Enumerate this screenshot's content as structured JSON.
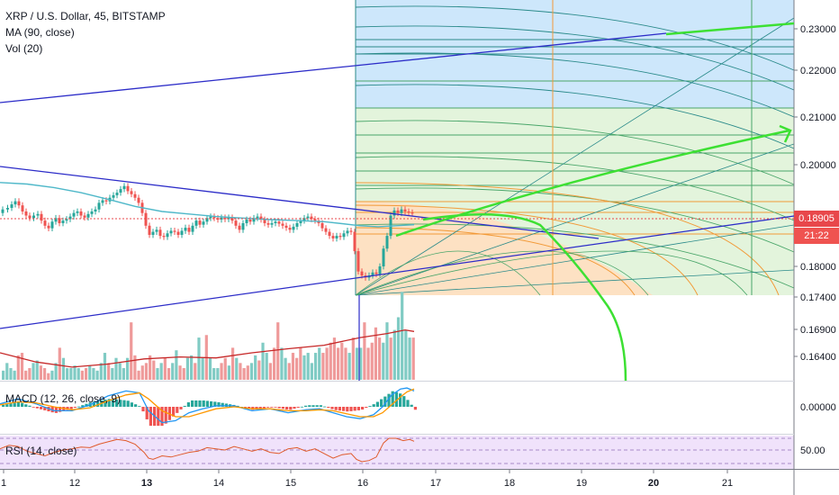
{
  "header": {
    "symbol_line": "XRP / U.S. Dollar, 45, BITSTAMP",
    "ma_label": "MA (90, close)",
    "vol_label": "Vol (20)",
    "macd_label": "MACD (12, 26, close, 9)",
    "rsi_label": "RSI (14, close)"
  },
  "price_axis": {
    "ticks": [
      "0.23000",
      "0.22000",
      "0.21000",
      "0.20000",
      "0.18000",
      "0.17400",
      "0.16900",
      "0.16400"
    ],
    "current_price": "0.18905",
    "countdown": "21:22"
  },
  "macd_axis": {
    "ticks": [
      "0.00000"
    ]
  },
  "rsi_axis": {
    "ticks": [
      "50.00"
    ]
  },
  "time_axis": {
    "ticks": [
      "1",
      "12",
      "13",
      "14",
      "15",
      "16",
      "17",
      "18",
      "19",
      "20",
      "21"
    ],
    "bold": [
      "13",
      "20"
    ]
  },
  "colors": {
    "up": "#26a69a",
    "down": "#ef5350",
    "ma": "#4fb8c9",
    "trendline": "#2c2cc8",
    "arrow": "#3de033",
    "price_tag": "#e8474b",
    "countdown_tag": "#ef5350",
    "fib_blue": "#cde7fb",
    "fib_green": "#e3f4dc",
    "fib_orange": "#fde1c3",
    "rsi_band": "#f0e2fb"
  },
  "chart_data": {
    "type": "candlestick",
    "instrument": "XRP / U.S. Dollar",
    "timeframe": "45",
    "exchange": "BITSTAMP",
    "price_range": [
      0.162,
      0.234
    ],
    "last_price": 0.18905,
    "ma_period": 90,
    "vol_period": 20,
    "macd_params": [
      12,
      26,
      9
    ],
    "rsi_period": 14,
    "rsi_level": 50.0,
    "price_path": [
      [
        0,
        0.1905
      ],
      [
        6,
        0.1912
      ],
      [
        11,
        0.1915
      ],
      [
        15,
        0.1922
      ],
      [
        19,
        0.1928
      ],
      [
        23,
        0.192
      ],
      [
        27,
        0.1908
      ],
      [
        31,
        0.19
      ],
      [
        35,
        0.1895
      ],
      [
        40,
        0.19
      ],
      [
        44,
        0.1903
      ],
      [
        48,
        0.189
      ],
      [
        52,
        0.188
      ],
      [
        56,
        0.1875
      ],
      [
        60,
        0.1888
      ],
      [
        64,
        0.1895
      ],
      [
        68,
        0.1885
      ],
      [
        72,
        0.189
      ],
      [
        76,
        0.1893
      ],
      [
        80,
        0.1898
      ],
      [
        84,
        0.1905
      ],
      [
        88,
        0.1908
      ],
      [
        92,
        0.19
      ],
      [
        96,
        0.1896
      ],
      [
        100,
        0.1903
      ],
      [
        104,
        0.1908
      ],
      [
        108,
        0.1912
      ],
      [
        112,
        0.1925
      ],
      [
        116,
        0.193
      ],
      [
        120,
        0.1928
      ],
      [
        124,
        0.1935
      ],
      [
        128,
        0.194
      ],
      [
        132,
        0.1945
      ],
      [
        136,
        0.1952
      ],
      [
        140,
        0.1958
      ],
      [
        144,
        0.1948
      ],
      [
        148,
        0.1942
      ],
      [
        152,
        0.1935
      ],
      [
        156,
        0.1925
      ],
      [
        160,
        0.1905
      ],
      [
        164,
        0.188
      ],
      [
        168,
        0.1862
      ],
      [
        172,
        0.1868
      ],
      [
        176,
        0.1872
      ],
      [
        180,
        0.186
      ],
      [
        184,
        0.1858
      ],
      [
        188,
        0.1865
      ],
      [
        192,
        0.187
      ],
      [
        196,
        0.1868
      ],
      [
        200,
        0.1862
      ],
      [
        204,
        0.187
      ],
      [
        208,
        0.1876
      ],
      [
        212,
        0.1868
      ],
      [
        216,
        0.188
      ],
      [
        220,
        0.189
      ],
      [
        224,
        0.1882
      ],
      [
        228,
        0.1888
      ],
      [
        232,
        0.1895
      ],
      [
        236,
        0.1898
      ],
      [
        240,
        0.1895
      ],
      [
        244,
        0.1892
      ],
      [
        248,
        0.1896
      ],
      [
        252,
        0.1893
      ],
      [
        256,
        0.1896
      ],
      [
        260,
        0.189
      ],
      [
        264,
        0.188
      ],
      [
        268,
        0.1872
      ],
      [
        272,
        0.1885
      ],
      [
        276,
        0.1892
      ],
      [
        280,
        0.1888
      ],
      [
        284,
        0.1895
      ],
      [
        288,
        0.1898
      ],
      [
        292,
        0.1892
      ],
      [
        296,
        0.1885
      ],
      [
        300,
        0.1882
      ],
      [
        304,
        0.1885
      ],
      [
        308,
        0.1888
      ],
      [
        312,
        0.1884
      ],
      [
        316,
        0.188
      ],
      [
        320,
        0.1876
      ],
      [
        324,
        0.1872
      ],
      [
        328,
        0.1878
      ],
      [
        332,
        0.1885
      ],
      [
        336,
        0.189
      ],
      [
        340,
        0.1895
      ],
      [
        344,
        0.1898
      ],
      [
        348,
        0.1893
      ],
      [
        352,
        0.189
      ],
      [
        356,
        0.1885
      ],
      [
        360,
        0.1875
      ],
      [
        364,
        0.1868
      ],
      [
        368,
        0.186
      ],
      [
        372,
        0.1855
      ],
      [
        376,
        0.186
      ],
      [
        380,
        0.1858
      ],
      [
        384,
        0.1865
      ],
      [
        388,
        0.187
      ],
      [
        392,
        0.1868
      ],
      [
        396,
        0.183
      ],
      [
        400,
        0.179
      ],
      [
        404,
        0.1782
      ],
      [
        408,
        0.1778
      ],
      [
        412,
        0.1782
      ],
      [
        416,
        0.1788
      ],
      [
        420,
        0.1785
      ],
      [
        424,
        0.18
      ],
      [
        428,
        0.1835
      ],
      [
        432,
        0.186
      ],
      [
        436,
        0.19
      ],
      [
        440,
        0.191
      ],
      [
        444,
        0.1905
      ],
      [
        448,
        0.1912
      ],
      [
        452,
        0.1908
      ],
      [
        456,
        0.1906
      ],
      [
        460,
        0.1905
      ]
    ],
    "volume": [
      0.1595,
      0.161,
      0.16,
      0.1595,
      0.1625,
      0.163,
      0.1595,
      0.16,
      0.161,
      0.1615,
      0.1605,
      0.16,
      0.159,
      0.1595,
      0.161,
      0.164,
      0.162,
      0.16,
      0.16,
      0.1605,
      0.16,
      0.1595,
      0.16,
      0.1605,
      0.16,
      0.1595,
      0.161,
      0.163,
      0.161,
      0.16,
      0.162,
      0.161,
      0.16,
      0.162,
      0.169,
      0.1625,
      0.1595,
      0.1605,
      0.161,
      0.1625,
      0.1615,
      0.16,
      0.161,
      0.162,
      0.16,
      0.161,
      0.1635,
      0.1605,
      0.16,
      0.162,
      0.1625,
      0.161,
      0.166,
      0.162,
      0.1665,
      0.162,
      0.16,
      0.16,
      0.161,
      0.162,
      0.1605,
      0.164,
      0.162,
      0.161,
      0.16,
      0.1605,
      0.161,
      0.1625,
      0.1615,
      0.165,
      0.163,
      0.161,
      0.164,
      0.169,
      0.164,
      0.162,
      0.161,
      0.163,
      0.162,
      0.164,
      0.1625,
      0.163,
      0.161,
      0.163,
      0.164,
      0.163,
      0.164,
      0.165,
      0.166,
      0.164,
      0.165,
      0.164,
      0.163,
      0.166,
      0.164,
      0.164,
      0.169,
      0.164,
      0.165,
      0.168,
      0.166,
      0.165,
      0.169,
      0.166,
      0.1675,
      0.17,
      0.175,
      0.1675,
      0.166,
      0.166
    ],
    "vol_ma": [
      [
        0,
        0.163
      ],
      [
        40,
        0.1612
      ],
      [
        80,
        0.1602
      ],
      [
        120,
        0.1608
      ],
      [
        160,
        0.1618
      ],
      [
        200,
        0.1622
      ],
      [
        240,
        0.162
      ],
      [
        280,
        0.163
      ],
      [
        320,
        0.1638
      ],
      [
        360,
        0.1645
      ],
      [
        400,
        0.166
      ],
      [
        430,
        0.1668
      ],
      [
        450,
        0.1675
      ],
      [
        460,
        0.1672
      ]
    ],
    "macd_line": [
      [
        0,
        0.003
      ],
      [
        20,
        0.008
      ],
      [
        40,
        0.003
      ],
      [
        60,
        -0.004
      ],
      [
        80,
        -0.004
      ],
      [
        100,
        0.002
      ],
      [
        120,
        0.011
      ],
      [
        140,
        0.016
      ],
      [
        155,
        0.014
      ],
      [
        165,
        -0.004
      ],
      [
        180,
        -0.016
      ],
      [
        195,
        -0.014
      ],
      [
        210,
        -0.006
      ],
      [
        225,
        -0.002
      ],
      [
        240,
        0.001
      ],
      [
        260,
        0.001
      ],
      [
        280,
        -0.004
      ],
      [
        300,
        -0.002
      ],
      [
        320,
        -0.006
      ],
      [
        340,
        -0.003
      ],
      [
        355,
        -0.002
      ],
      [
        370,
        -0.006
      ],
      [
        385,
        -0.01
      ],
      [
        400,
        -0.012
      ],
      [
        415,
        -0.008
      ],
      [
        425,
        0.0
      ],
      [
        435,
        0.012
      ],
      [
        445,
        0.018
      ],
      [
        452,
        0.019
      ],
      [
        460,
        0.016
      ]
    ],
    "macd_signal": [
      [
        0,
        0.002
      ],
      [
        20,
        0.005
      ],
      [
        40,
        0.004
      ],
      [
        60,
        0.0
      ],
      [
        80,
        -0.003
      ],
      [
        100,
        -0.001
      ],
      [
        120,
        0.006
      ],
      [
        140,
        0.012
      ],
      [
        155,
        0.014
      ],
      [
        165,
        0.008
      ],
      [
        180,
        -0.004
      ],
      [
        195,
        -0.01
      ],
      [
        210,
        -0.01
      ],
      [
        225,
        -0.006
      ],
      [
        240,
        -0.002
      ],
      [
        260,
        0.0
      ],
      [
        280,
        -0.002
      ],
      [
        300,
        -0.002
      ],
      [
        320,
        -0.004
      ],
      [
        340,
        -0.004
      ],
      [
        355,
        -0.003
      ],
      [
        370,
        -0.004
      ],
      [
        385,
        -0.007
      ],
      [
        400,
        -0.01
      ],
      [
        415,
        -0.01
      ],
      [
        425,
        -0.006
      ],
      [
        435,
        0.002
      ],
      [
        445,
        0.01
      ],
      [
        452,
        0.015
      ],
      [
        460,
        0.018
      ]
    ],
    "rsi": [
      [
        0,
        52
      ],
      [
        10,
        58
      ],
      [
        20,
        56
      ],
      [
        30,
        48
      ],
      [
        40,
        44
      ],
      [
        50,
        40
      ],
      [
        60,
        46
      ],
      [
        70,
        50
      ],
      [
        80,
        52
      ],
      [
        90,
        55
      ],
      [
        100,
        54
      ],
      [
        110,
        60
      ],
      [
        120,
        64
      ],
      [
        130,
        68
      ],
      [
        140,
        66
      ],
      [
        150,
        60
      ],
      [
        160,
        46
      ],
      [
        165,
        36
      ],
      [
        170,
        34
      ],
      [
        180,
        40
      ],
      [
        190,
        38
      ],
      [
        200,
        42
      ],
      [
        210,
        46
      ],
      [
        220,
        48
      ],
      [
        230,
        54
      ],
      [
        240,
        52
      ],
      [
        250,
        50
      ],
      [
        260,
        56
      ],
      [
        270,
        52
      ],
      [
        280,
        48
      ],
      [
        290,
        52
      ],
      [
        300,
        46
      ],
      [
        310,
        44
      ],
      [
        320,
        52
      ],
      [
        330,
        54
      ],
      [
        340,
        48
      ],
      [
        350,
        52
      ],
      [
        360,
        44
      ],
      [
        370,
        36
      ],
      [
        380,
        42
      ],
      [
        390,
        44
      ],
      [
        396,
        34
      ],
      [
        402,
        30
      ],
      [
        410,
        32
      ],
      [
        418,
        38
      ],
      [
        426,
        62
      ],
      [
        432,
        70
      ],
      [
        440,
        70
      ],
      [
        448,
        66
      ],
      [
        455,
        68
      ],
      [
        460,
        65
      ]
    ],
    "time_ticks": [
      "1",
      "12",
      "13",
      "14",
      "15",
      "16",
      "17",
      "18",
      "19",
      "20",
      "21"
    ]
  }
}
